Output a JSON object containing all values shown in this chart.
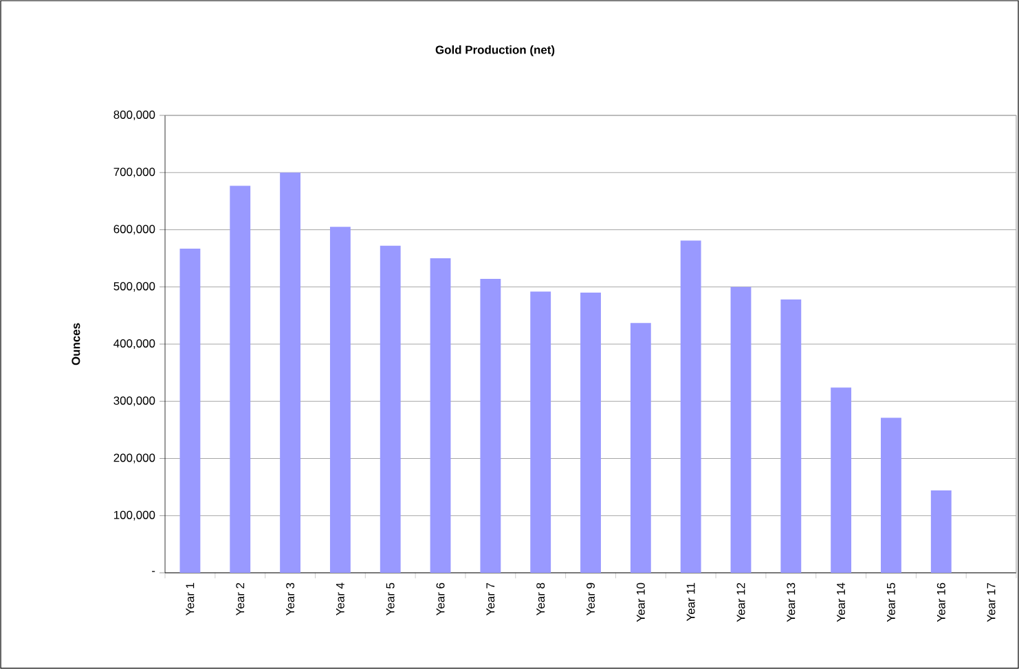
{
  "chart_data": {
    "type": "bar",
    "title": "Gold Production (net)",
    "ylabel": "Ounces",
    "categories": [
      "Year 1",
      "Year 2",
      "Year 3",
      "Year 4",
      "Year 5",
      "Year 6",
      "Year 7",
      "Year 8",
      "Year 9",
      "Year 10",
      "Year 11",
      "Year 12",
      "Year 13",
      "Year 14",
      "Year 15",
      "Year 16",
      "Year 17"
    ],
    "values": [
      567000,
      677000,
      700000,
      605000,
      572000,
      550000,
      514000,
      492000,
      490000,
      437000,
      581000,
      500000,
      478000,
      324000,
      271000,
      144000,
      0
    ],
    "color": "#9999ff",
    "ylim": [
      0,
      800000
    ],
    "yticks": [
      {
        "value": 0,
        "label": "-"
      },
      {
        "value": 100000,
        "label": "100,000"
      },
      {
        "value": 200000,
        "label": "200,000"
      },
      {
        "value": 300000,
        "label": "300,000"
      },
      {
        "value": 400000,
        "label": "400,000"
      },
      {
        "value": 500000,
        "label": "500,000"
      },
      {
        "value": 600000,
        "label": "600,000"
      },
      {
        "value": 700000,
        "label": "700,000"
      },
      {
        "value": 800000,
        "label": "800,000"
      }
    ],
    "grid": "y"
  }
}
